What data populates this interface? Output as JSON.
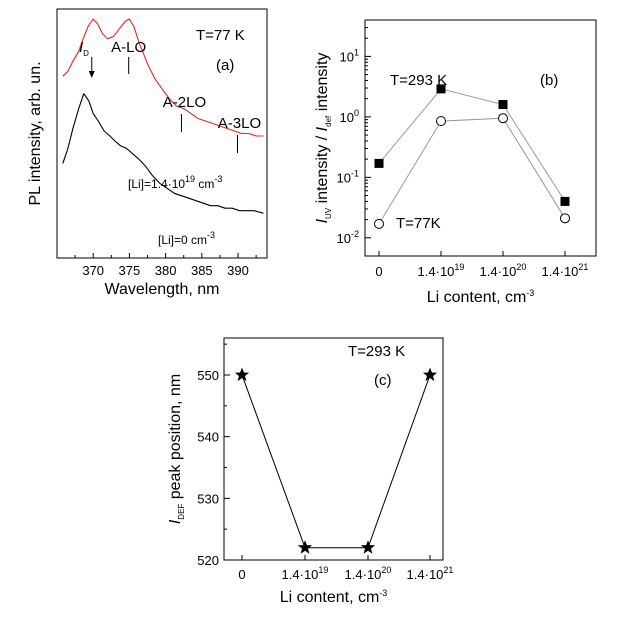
{
  "chart_data": [
    {
      "panel": "a",
      "type": "line",
      "panel_label": "(a)",
      "temperature_label": "T=77 K",
      "xlabel": "Wavelength, nm",
      "ylabel": "PL intensity, arb. un.",
      "xlim": [
        365,
        394
      ],
      "xticks": [
        "370",
        "375",
        "380",
        "385",
        "390"
      ],
      "series": [
        {
          "name": "[Li]=1.4·10^19 cm^-3",
          "label_text": "[Li]=1.4·10",
          "label_exp": "19",
          "label_unit": " cm",
          "label_unit_exp": "-3",
          "color": "#e8261c",
          "x": [
            365.8,
            366.5,
            367.2,
            368.0,
            368.6,
            369.3,
            370.0,
            370.6,
            371.3,
            372.0,
            372.8,
            373.6,
            374.4,
            375.0,
            375.6,
            376.4,
            377.5,
            378.5,
            379.5,
            380.5,
            381.5,
            382.5,
            383.5,
            384.5,
            385.5,
            386.5,
            387.5,
            388.5,
            389.5,
            390.5,
            391.5,
            392.5,
            393.5
          ],
          "y": [
            0.73,
            0.75,
            0.79,
            0.83,
            0.88,
            0.93,
            0.96,
            0.94,
            0.9,
            0.88,
            0.89,
            0.92,
            0.95,
            0.96,
            0.93,
            0.86,
            0.78,
            0.72,
            0.68,
            0.64,
            0.61,
            0.6,
            0.58,
            0.56,
            0.55,
            0.54,
            0.53,
            0.52,
            0.51,
            0.5,
            0.5,
            0.49,
            0.49
          ]
        },
        {
          "name": "[Li]=0 cm^-3",
          "label_text": "[Li]=0 cm",
          "label_exp": "-3",
          "color": "#000000",
          "x": [
            365.8,
            366.5,
            367.2,
            368.0,
            368.7,
            369.4,
            370.0,
            370.7,
            371.5,
            372.3,
            373.0,
            373.8,
            374.6,
            375.4,
            376.2,
            377.2,
            378.2,
            379.2,
            380.2,
            381.2,
            382.2,
            383.2,
            384.2,
            385.2,
            386.2,
            387.2,
            388.2,
            389.2,
            390.2,
            391.2,
            392.2,
            393.5
          ],
          "y": [
            0.38,
            0.44,
            0.52,
            0.6,
            0.66,
            0.63,
            0.58,
            0.55,
            0.51,
            0.49,
            0.47,
            0.45,
            0.44,
            0.42,
            0.4,
            0.37,
            0.33,
            0.3,
            0.28,
            0.26,
            0.25,
            0.24,
            0.23,
            0.22,
            0.21,
            0.21,
            0.2,
            0.2,
            0.19,
            0.19,
            0.19,
            0.18
          ]
        }
      ],
      "annotations": [
        {
          "label": "I",
          "sub": "D",
          "x": 369.8,
          "y": 0.93
        },
        {
          "label": "A-LO",
          "x": 374.9,
          "y": 0.95
        },
        {
          "label": "A-2LO",
          "x": 382.6,
          "y": 0.6
        },
        {
          "label": "A-3LO",
          "x": 390.2,
          "y": 0.5
        }
      ]
    },
    {
      "panel": "b",
      "type": "scatter",
      "panel_label": "(b)",
      "ylabel_parts": [
        "I",
        "UV",
        " intensity / ",
        "I",
        "def",
        " intensity"
      ],
      "xlabel": "Li content, cm",
      "xlabel_exp": "-3",
      "yscale": "log",
      "ylim": [
        0.005,
        40
      ],
      "categories": [
        "0",
        "1.4·10^19",
        "1.4·10^20",
        "1.4·10^21"
      ],
      "xtick_labels": [
        {
          "base": "0",
          "exp": ""
        },
        {
          "base": "1.4·10",
          "exp": "19"
        },
        {
          "base": "1.4·10",
          "exp": "20"
        },
        {
          "base": "1.4·10",
          "exp": "21"
        }
      ],
      "yticks": [
        {
          "value": 0.01,
          "base": "10",
          "exp": "-2"
        },
        {
          "value": 0.1,
          "base": "10",
          "exp": "-1"
        },
        {
          "value": 1,
          "base": "10",
          "exp": "0"
        },
        {
          "value": 10,
          "base": "10",
          "exp": "1"
        }
      ],
      "series": [
        {
          "label": "T=293 K",
          "marker": "filled-square",
          "values": [
            0.17,
            2.9,
            1.6,
            0.04
          ]
        },
        {
          "label": "T=77K",
          "marker": "open-circle",
          "values": [
            0.017,
            0.85,
            0.95,
            0.021
          ]
        }
      ]
    },
    {
      "panel": "c",
      "type": "line",
      "panel_label": "(c)",
      "temperature_label": "T=293 K",
      "ylabel_parts": [
        "I",
        "DEF",
        " peak position, nm"
      ],
      "xlabel": "Li content, cm",
      "xlabel_exp": "-3",
      "ylim": [
        520,
        556
      ],
      "yticks": [
        "520",
        "530",
        "540",
        "550"
      ],
      "categories": [
        "0",
        "1.4·10^19",
        "1.4·10^20",
        "1.4·10^21"
      ],
      "xtick_labels": [
        {
          "base": "0",
          "exp": ""
        },
        {
          "base": "1.4·10",
          "exp": "19"
        },
        {
          "base": "1.4·10",
          "exp": "20"
        },
        {
          "base": "1.4·10",
          "exp": "21"
        }
      ],
      "series": [
        {
          "marker": "star",
          "values": [
            550,
            522,
            522,
            550
          ]
        }
      ]
    }
  ]
}
